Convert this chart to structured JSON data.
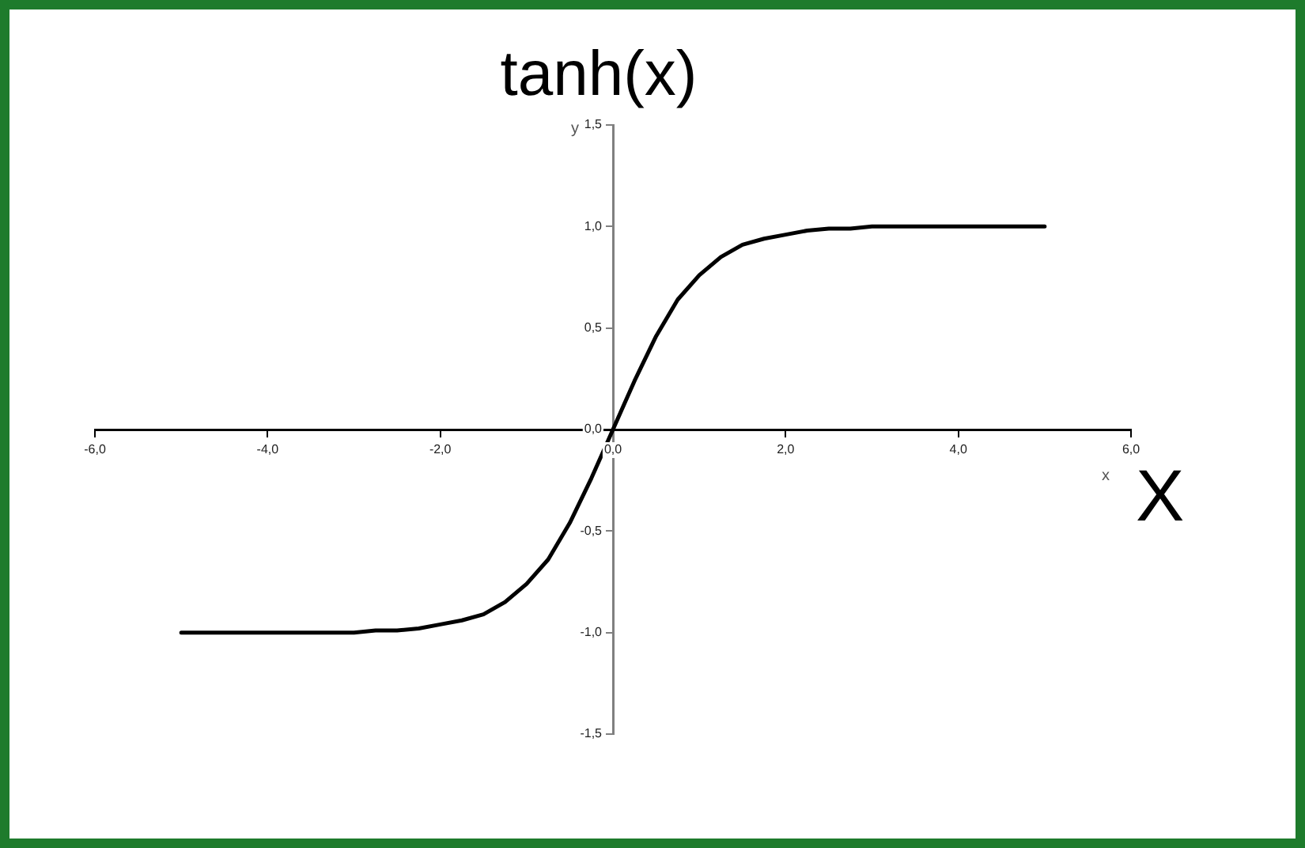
{
  "chart_data": {
    "type": "line",
    "title": "tanh(x)",
    "xlabel": "x",
    "ylabel": "y",
    "annotations": [
      "X"
    ],
    "x": [
      -5,
      -4.75,
      -4.5,
      -4.25,
      -4,
      -3.75,
      -3.5,
      -3.25,
      -3,
      -2.75,
      -2.5,
      -2.25,
      -2,
      -1.75,
      -1.5,
      -1.25,
      -1,
      -0.75,
      -0.5,
      -0.25,
      0,
      0.25,
      0.5,
      0.75,
      1,
      1.25,
      1.5,
      1.75,
      2,
      2.25,
      2.5,
      2.75,
      3,
      3.25,
      3.5,
      3.75,
      4,
      4.25,
      4.5,
      4.75,
      5
    ],
    "series": [
      {
        "color": "#000000",
        "values": [
          -1.0,
          -1.0,
          -1.0,
          -1.0,
          -1.0,
          -1.0,
          -1.0,
          -1.0,
          -1.0,
          -0.99,
          -0.99,
          -0.98,
          -0.96,
          -0.94,
          -0.91,
          -0.85,
          -0.76,
          -0.64,
          -0.46,
          -0.24,
          0,
          0.24,
          0.46,
          0.64,
          0.76,
          0.85,
          0.91,
          0.94,
          0.96,
          0.98,
          0.99,
          0.99,
          1.0,
          1.0,
          1.0,
          1.0,
          1.0,
          1.0,
          1.0,
          1.0,
          1.0
        ]
      }
    ],
    "xlim": [
      -6,
      6
    ],
    "xticks": [
      {
        "value": -6,
        "label": "-6,0"
      },
      {
        "value": -4,
        "label": "-4,0"
      },
      {
        "value": -2,
        "label": "-2,0"
      },
      {
        "value": 0,
        "label": "0,0"
      },
      {
        "value": 2,
        "label": "2,0"
      },
      {
        "value": 4,
        "label": "4,0"
      },
      {
        "value": 6,
        "label": "6,0"
      }
    ],
    "ylim": [
      -1.5,
      1.5
    ],
    "yticks": [
      {
        "value": -1.5,
        "label": "-1,5"
      },
      {
        "value": -1,
        "label": "-1,0"
      },
      {
        "value": -0.5,
        "label": "-0,5"
      },
      {
        "value": 0,
        "label": "0,0"
      },
      {
        "value": 0.5,
        "label": "0,5"
      },
      {
        "value": 1,
        "label": "1,0"
      },
      {
        "value": 1.5,
        "label": "1,5"
      }
    ],
    "grid": false,
    "legend": false,
    "marker": "none",
    "line_style": "solid"
  }
}
